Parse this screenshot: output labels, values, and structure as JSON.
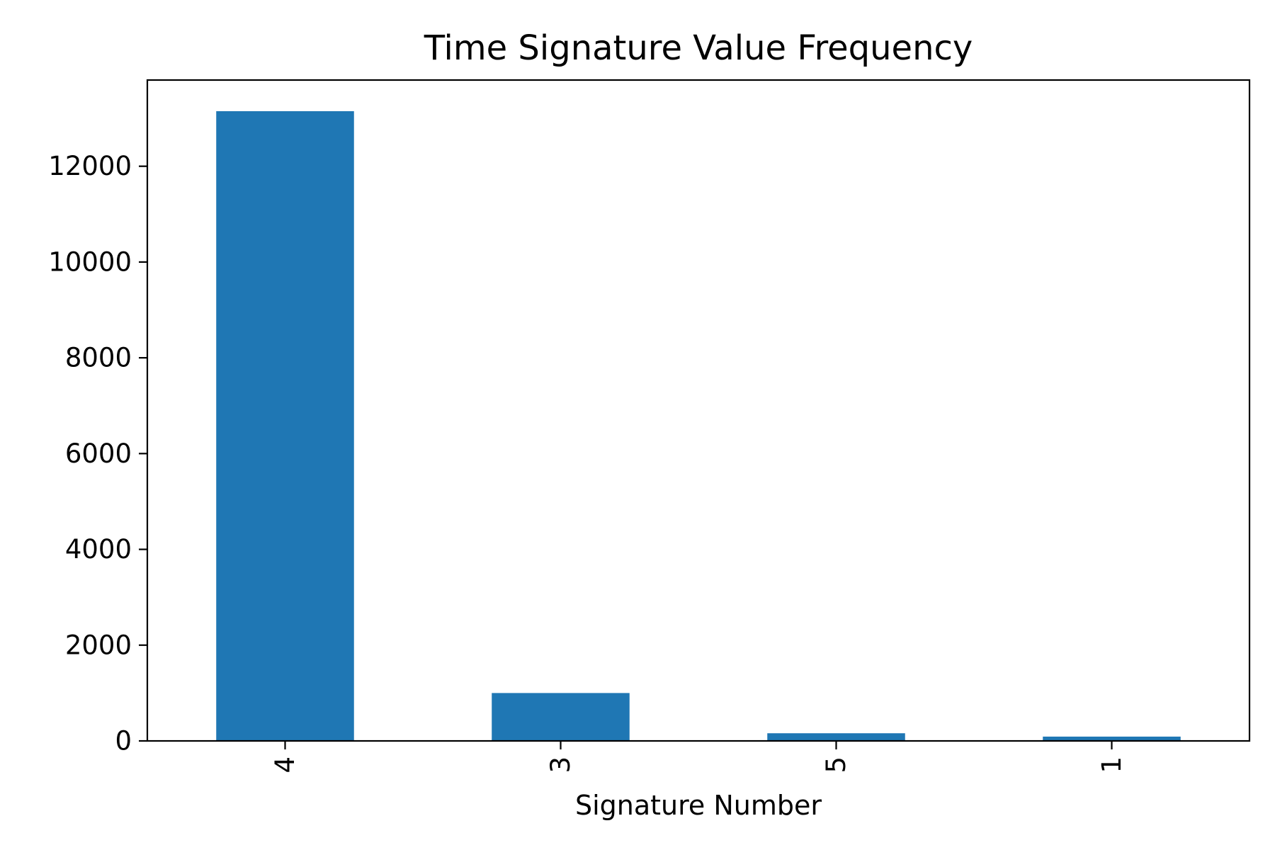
{
  "chart_data": {
    "type": "bar",
    "title": "Time Signature Value Frequency",
    "xlabel": "Signature Number",
    "ylabel": "",
    "categories": [
      "4",
      "3",
      "5",
      "1"
    ],
    "values": [
      13150,
      1000,
      160,
      90
    ],
    "ylim": [
      0,
      13800
    ],
    "yticks": [
      0,
      2000,
      4000,
      6000,
      8000,
      10000,
      12000
    ],
    "ytick_labels": [
      "0",
      "2000",
      "4000",
      "6000",
      "8000",
      "10000",
      "12000"
    ],
    "bar_color": "#1f77b4",
    "xtick_rotation": "vertical",
    "grid": false,
    "legend": "none"
  }
}
